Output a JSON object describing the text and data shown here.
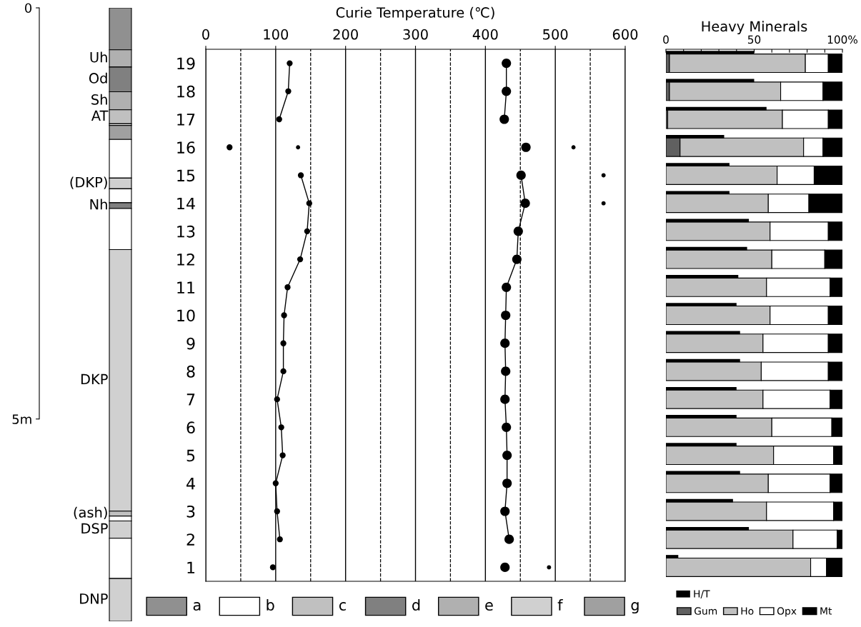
{
  "chart_data": [
    {
      "type": "bar",
      "stacked": true,
      "categories": [
        null
      ],
      "ylim": [
        7.46,
        0
      ],
      "yticks": [
        0,
        {
          "value": 5,
          "label": "5m"
        }
      ],
      "tick_labels": "y",
      "series": [
        {
          "color": "#909090",
          "values": [
            0.51
          ]
        },
        {
          "name": "Uh",
          "color": "#b0b0b0",
          "values": [
            0.21
          ]
        },
        {
          "name": "Od",
          "color": "#808080",
          "values": [
            0.3
          ]
        },
        {
          "name": "Sh",
          "color": "#b0b0b0",
          "values": [
            0.22
          ]
        },
        {
          "name": "AT",
          "color": "#c0c0c0",
          "values": [
            0.17
          ]
        },
        {
          "color": "#ffffff",
          "values": [
            0.02
          ]
        },
        {
          "color": "#a0a0a0",
          "values": [
            0.17
          ]
        },
        {
          "color": "#ffffff",
          "values": [
            0.47
          ]
        },
        {
          "name": "(DKP)",
          "color": "#d0d0d0",
          "values": [
            0.13
          ]
        },
        {
          "color": "#ffffff",
          "values": [
            0.17
          ]
        },
        {
          "name": "Nh",
          "color": "#808080",
          "values": [
            0.07
          ]
        },
        {
          "color": "#ffffff",
          "values": [
            0.5
          ]
        },
        {
          "name": "DKP",
          "color": "#d0d0d0",
          "values": [
            3.18
          ]
        },
        {
          "name": "(ash)",
          "color": "#c0c0c0",
          "values": [
            0.06
          ]
        },
        {
          "color": "#ffffff",
          "values": [
            0.06
          ]
        },
        {
          "name": "DSP",
          "color": "#d0d0d0",
          "values": [
            0.21
          ]
        },
        {
          "color": "#ffffff",
          "values": [
            0.49
          ]
        },
        {
          "name": "DNP",
          "color": "#d0d0d0",
          "values": [
            0.52
          ]
        }
      ]
    },
    {
      "type": "line",
      "orientation": "horizontal",
      "title": "Curie Temperature (℃)",
      "categories": [
        "19",
        "18",
        "17",
        "16",
        "15",
        "14",
        "13",
        "12",
        "11",
        "10",
        "9",
        "8",
        "7",
        "6",
        "5",
        "4",
        "3",
        "2",
        "1"
      ],
      "xlim": [
        0,
        600
      ],
      "xticks": [
        0,
        100,
        200,
        300,
        400,
        500,
        600
      ],
      "grid": "x",
      "marker": "circle",
      "ref_lines": [
        {
          "axis": "x",
          "value": 50,
          "line_style": "dashed",
          "color": "#000000"
        },
        {
          "axis": "x",
          "value": 150,
          "line_style": "dashed",
          "color": "#000000"
        },
        {
          "axis": "x",
          "value": 250,
          "line_style": "dashed",
          "color": "#000000"
        },
        {
          "axis": "x",
          "value": 350,
          "line_style": "dashed",
          "color": "#000000"
        },
        {
          "axis": "x",
          "value": 450,
          "line_style": "dashed",
          "color": "#000000"
        },
        {
          "axis": "x",
          "value": 550,
          "line_style": "dashed",
          "color": "#000000"
        }
      ],
      "series": [
        {
          "type": "line",
          "color": "#000000",
          "values": [
            120,
            118,
            105,
            null,
            136,
            148,
            145,
            135,
            117,
            112,
            111,
            111,
            102,
            108,
            110,
            100,
            102,
            106,
            null
          ]
        },
        {
          "type": "line",
          "color": "#000000",
          "values": [
            430,
            430,
            427,
            null,
            451,
            457,
            447,
            445,
            430,
            429,
            428,
            429,
            428,
            430,
            431,
            431,
            428,
            434,
            null
          ]
        },
        {
          "type": "scatter",
          "color": "#000000",
          "values": [
            null,
            null,
            null,
            34,
            null,
            null,
            null,
            null,
            null,
            null,
            null,
            null,
            null,
            null,
            null,
            null,
            null,
            null,
            96
          ],
          "sizes": [
            null,
            null,
            null,
            0.4,
            null,
            null,
            null,
            null,
            null,
            null,
            null,
            null,
            null,
            null,
            null,
            null,
            null,
            null,
            0.4
          ]
        },
        {
          "type": "scatter",
          "color": "#000000",
          "values": [
            null,
            null,
            null,
            458,
            null,
            null,
            null,
            null,
            null,
            null,
            null,
            null,
            null,
            null,
            null,
            null,
            null,
            null,
            428
          ],
          "sizes": [
            null,
            null,
            null,
            1,
            null,
            null,
            null,
            null,
            null,
            null,
            null,
            null,
            null,
            null,
            null,
            null,
            null,
            null,
            1
          ]
        },
        {
          "type": "scatter",
          "color": "#000000",
          "values": [
            null,
            null,
            null,
            132,
            569,
            569,
            null,
            null,
            null,
            null,
            null,
            null,
            null,
            null,
            null,
            null,
            null,
            null,
            491
          ],
          "sizes": [
            null,
            null,
            null,
            0.2,
            0.2,
            0.2,
            null,
            null,
            null,
            null,
            null,
            null,
            null,
            null,
            null,
            null,
            null,
            null,
            0.2
          ]
        },
        {
          "type": "scatter",
          "color": "#000000",
          "values": [
            null,
            null,
            null,
            526,
            null,
            null,
            null,
            null,
            null,
            null,
            null,
            null,
            null,
            null,
            null,
            null,
            null,
            null,
            null
          ],
          "sizes": [
            null,
            null,
            null,
            0.2,
            null,
            null,
            null,
            null,
            null,
            null,
            null,
            null,
            null,
            null,
            null,
            null,
            null,
            null,
            null
          ]
        }
      ]
    },
    {
      "type": "bar",
      "orientation": "horizontal",
      "stacked": true,
      "title": "Heavy Minerals",
      "legend": "bottom",
      "tick_labels": "x",
      "categories": [
        null,
        null,
        null,
        null,
        null,
        null,
        null,
        null,
        null,
        null,
        null,
        null,
        null,
        null,
        null,
        null,
        null,
        null,
        null
      ],
      "xlim": [
        0,
        100
      ],
      "xticks": [
        0,
        {
          "value": 10,
          "label": null
        },
        {
          "value": 20,
          "label": null
        },
        {
          "value": 30,
          "label": null
        },
        {
          "value": 40,
          "label": null
        },
        50,
        {
          "value": 60,
          "label": null
        },
        {
          "value": 70,
          "label": null
        },
        {
          "value": 80,
          "label": null
        },
        {
          "value": 90,
          "label": null
        },
        {
          "value": 100,
          "label": "100%"
        }
      ],
      "series": [
        {
          "name": "Gum",
          "color": "#606060",
          "values": [
            2,
            2,
            1,
            8,
            0,
            0,
            0,
            0,
            0,
            0,
            0,
            0,
            0,
            0,
            0,
            0,
            0,
            0,
            0
          ]
        },
        {
          "name": "Ho",
          "color": "#c0c0c0",
          "values": [
            77,
            63,
            65,
            70,
            63,
            58,
            59,
            60,
            57,
            59,
            55,
            54,
            55,
            60,
            61,
            58,
            57,
            72,
            82
          ]
        },
        {
          "name": "Opx",
          "color": "#ffffff",
          "values": [
            13,
            24,
            26,
            11,
            21,
            23,
            33,
            30,
            36,
            33,
            37,
            38,
            38,
            34,
            34,
            35,
            38,
            25,
            9
          ]
        },
        {
          "name": "Mt",
          "color": "#000000",
          "values": [
            8,
            11,
            8,
            11,
            16,
            19,
            8,
            10,
            7,
            8,
            8,
            8,
            7,
            6,
            5,
            7,
            5,
            3,
            9
          ]
        }
      ]
    },
    {
      "type": "bar",
      "orientation": "horizontal",
      "legend": "bottom",
      "tick_labels": false,
      "categories": [
        null,
        null,
        null,
        null,
        null,
        null,
        null,
        null,
        null,
        null,
        null,
        null,
        null,
        null,
        null,
        null,
        null,
        null,
        null
      ],
      "xlim": [
        0,
        100
      ],
      "series": [
        {
          "name": "H/T",
          "color": "#000000",
          "values": [
            50,
            50,
            57,
            33,
            36,
            36,
            47,
            46,
            41,
            40,
            42,
            42,
            40,
            40,
            40,
            42,
            38,
            47,
            7
          ]
        }
      ]
    },
    {
      "type": "other",
      "categories": [
        "a",
        "b",
        "c",
        "d",
        "e",
        "f",
        "g"
      ],
      "colors": [
        "#909090",
        "#ffffff",
        "#c0c0c0",
        "#808080",
        "#b0b0b0",
        "#d0d0d0",
        "#a0a0a0"
      ]
    }
  ]
}
